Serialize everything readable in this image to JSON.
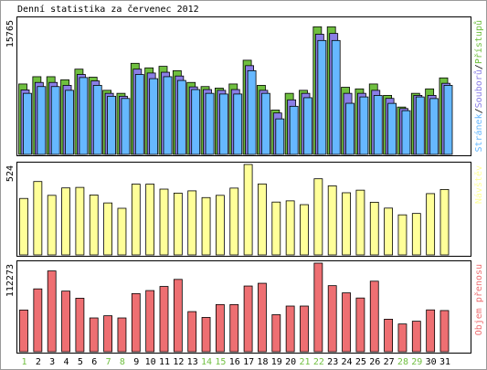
{
  "title": "Denní statistika za červenec 2012",
  "colors": {
    "hits": "#6fbf3f",
    "files": "#8a7ee6",
    "pages": "#66b8ff",
    "visits": "#ffff99",
    "volume": "#ee6f72",
    "weekend_day": "#6fbf3f",
    "weekday": "#000000"
  },
  "chart_data": [
    {
      "type": "bar",
      "panel": "top",
      "ymax_label": "15765",
      "ylabel_parts": [
        {
          "text": "Stránek",
          "color_key": "pages"
        },
        {
          "text": "/",
          "color_key": "weekday"
        },
        {
          "text": "Souborů",
          "color_key": "files"
        },
        {
          "text": "/",
          "color_key": "weekday"
        },
        {
          "text": "Přístupů",
          "color_key": "hits"
        }
      ],
      "ylim": [
        0,
        15765
      ],
      "categories": [
        "1",
        "2",
        "3",
        "4",
        "5",
        "6",
        "7",
        "8",
        "9",
        "10",
        "11",
        "12",
        "13",
        "14",
        "15",
        "16",
        "17",
        "18",
        "19",
        "20",
        "21",
        "22",
        "23",
        "24",
        "25",
        "26",
        "27",
        "28",
        "29",
        "30",
        "31"
      ],
      "weekend": [
        "1",
        "7",
        "8",
        "14",
        "15",
        "21",
        "22",
        "28",
        "29"
      ],
      "series": [
        {
          "name": "Přístupů",
          "color_key": "hits",
          "values": [
            8210,
            9060,
            9060,
            8700,
            9940,
            9000,
            7470,
            7120,
            10620,
            10090,
            10270,
            9760,
            8390,
            7910,
            7730,
            8210,
            10980,
            8050,
            5170,
            7120,
            7470,
            14880,
            14880,
            7830,
            7640,
            8210,
            6880,
            5520,
            7120,
            7640,
            8920
          ]
        },
        {
          "name": "Souborů",
          "color_key": "files",
          "values": [
            7520,
            8390,
            8390,
            8050,
            9320,
            8570,
            7120,
            6780,
            9940,
            9490,
            9580,
            9140,
            7870,
            7560,
            7470,
            7560,
            10350,
            7470,
            4830,
            6360,
            7120,
            14010,
            14100,
            7120,
            7120,
            7470,
            6530,
            5350,
            6880,
            6880,
            8290
          ]
        },
        {
          "name": "Stránek",
          "color_key": "pages",
          "values": [
            7120,
            7910,
            7910,
            7470,
            8960,
            8050,
            6780,
            6520,
            9320,
            8830,
            9060,
            8620,
            7560,
            7120,
            7040,
            7040,
            9760,
            7120,
            4140,
            5610,
            6610,
            13280,
            13280,
            5960,
            6700,
            6870,
            5950,
            5100,
            6700,
            6510,
            8050
          ]
        }
      ]
    },
    {
      "type": "bar",
      "panel": "middle",
      "ymax_label": "524",
      "ylabel_parts": [
        {
          "text": "Návštěv",
          "color_key": "visits"
        }
      ],
      "ylim": [
        0,
        524
      ],
      "categories": [
        "1",
        "2",
        "3",
        "4",
        "5",
        "6",
        "7",
        "8",
        "9",
        "10",
        "11",
        "12",
        "13",
        "14",
        "15",
        "16",
        "17",
        "18",
        "19",
        "20",
        "21",
        "22",
        "23",
        "24",
        "25",
        "26",
        "27",
        "28",
        "29",
        "30",
        "31"
      ],
      "series": [
        {
          "name": "Návštěv",
          "color_key": "visits",
          "values": [
            327,
            425,
            345,
            388,
            391,
            347,
            301,
            270,
            410,
            410,
            381,
            358,
            371,
            332,
            345,
            387,
            524,
            411,
            306,
            313,
            291,
            441,
            400,
            360,
            375,
            305,
            271,
            232,
            240,
            355,
            379
          ]
        }
      ]
    },
    {
      "type": "bar",
      "panel": "bottom",
      "ymax_label": "112273",
      "ylabel_parts": [
        {
          "text": "Objem přenosu",
          "color_key": "volume"
        }
      ],
      "ylim": [
        0,
        112273
      ],
      "categories": [
        "1",
        "2",
        "3",
        "4",
        "5",
        "6",
        "7",
        "8",
        "9",
        "10",
        "11",
        "12",
        "13",
        "14",
        "15",
        "16",
        "17",
        "18",
        "19",
        "20",
        "21",
        "22",
        "23",
        "24",
        "25",
        "26",
        "27",
        "28",
        "29",
        "30",
        "31"
      ],
      "series": [
        {
          "name": "Objem přenosu",
          "color_key": "volume",
          "values": [
            52870,
            79630,
            102360,
            76820,
            67800,
            42810,
            45580,
            42810,
            73680,
            77500,
            82710,
            91650,
            50840,
            43470,
            59790,
            59790,
            83270,
            86740,
            46920,
            57860,
            57860,
            112273,
            83730,
            74600,
            68070,
            89370,
            41210,
            35150,
            38650,
            53010,
            52170
          ]
        }
      ]
    }
  ]
}
